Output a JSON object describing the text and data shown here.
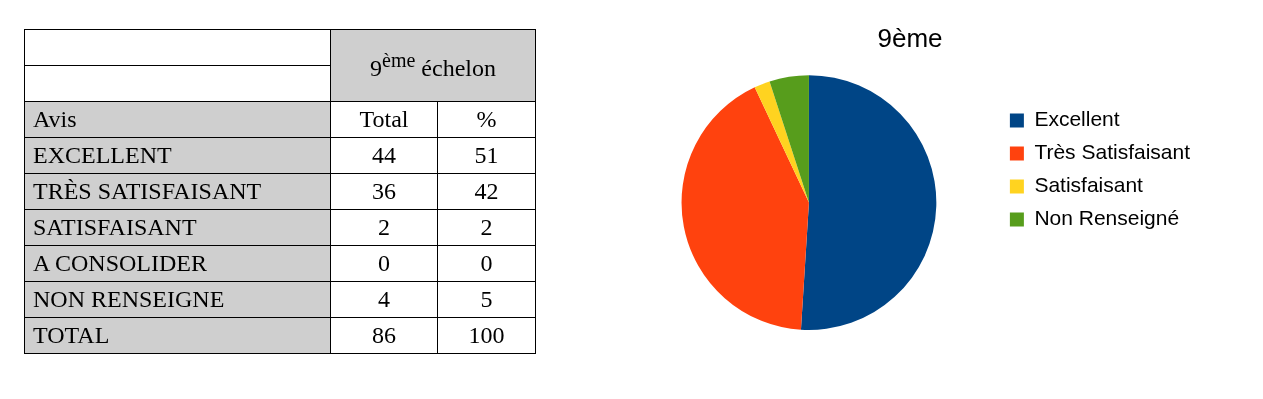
{
  "chart_data": [
    {
      "type": "heatmap",
      "data_labels": true,
      "title": "9$^{ème}$ échelon",
      "ylabel": "Avis",
      "categories": [
        "Total",
        "%"
      ],
      "y_categories": [
        "EXCELLENT",
        "TRÈS SATISFAISANT",
        "SATISFAISANT",
        "A CONSOLIDER",
        "NON RENSEIGNE",
        "TOTAL"
      ],
      "cells": [
        [
          44,
          51
        ],
        [
          36,
          42
        ],
        [
          2,
          2
        ],
        [
          0,
          0
        ],
        [
          4,
          5
        ],
        [
          86,
          100
        ]
      ]
    },
    {
      "type": "pie",
      "title": "9ème",
      "categories": [
        "Excellent",
        "Très Satisfaisant",
        "Satisfaisant",
        "Non Renseigné"
      ],
      "values": [
        51,
        42,
        2,
        5
      ],
      "colors": [
        "#004586",
        "#ff420e",
        "#ffd320",
        "#579d1c"
      ],
      "legend": "right"
    }
  ]
}
